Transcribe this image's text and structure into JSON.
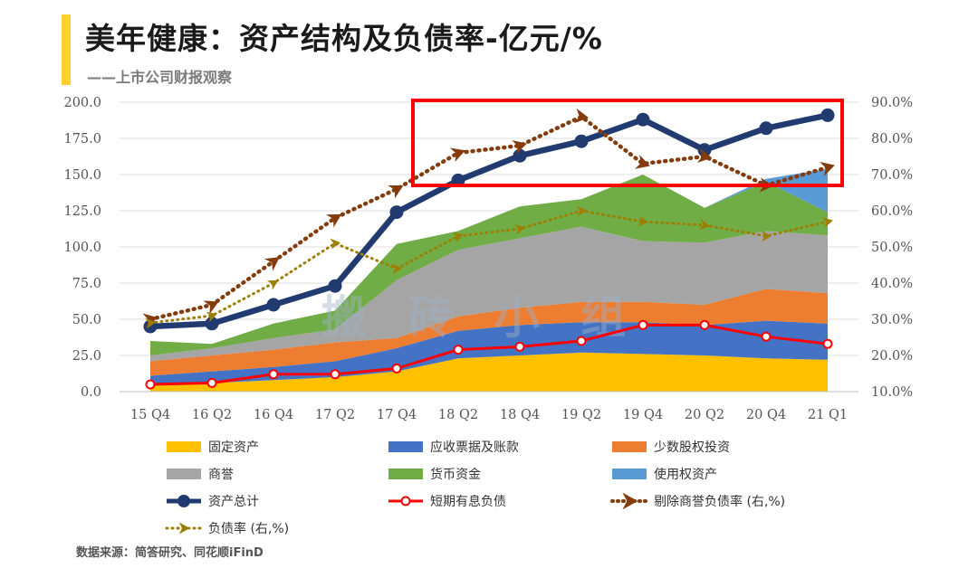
{
  "header": {
    "title": "美年健康：资产结构及负债率-亿元/%",
    "subtitle": "——上市公司财报观察"
  },
  "footer": {
    "source": "数据来源：简答研究、同花顺iFinD"
  },
  "watermark": "搬 砖 小 组",
  "colors": {
    "fixed_assets": "#FFC000",
    "receivables": "#4472C4",
    "minority": "#ED7D31",
    "goodwill": "#A5A5A5",
    "cash": "#70AD47",
    "rou": "#5B9BD5",
    "total_assets": "#213B70",
    "short_debt": "#FF0000",
    "adj_debt_ratio": "#843C0C",
    "debt_ratio": "#9C7F00",
    "highlight_box": "#FF0000",
    "accent": "#FFD232"
  },
  "chart_data": {
    "type": "area",
    "categories": [
      "15 Q4",
      "16 Q2",
      "16 Q4",
      "17 Q2",
      "17 Q4",
      "18 Q2",
      "18 Q4",
      "19 Q2",
      "19 Q4",
      "20 Q2",
      "20 Q4",
      "21 Q1"
    ],
    "ylim": [
      0,
      200
    ],
    "y_ticks": [
      "0.0",
      "25.0",
      "50.0",
      "75.0",
      "100.0",
      "125.0",
      "150.0",
      "175.0",
      "200.0"
    ],
    "y2lim": [
      10,
      90
    ],
    "y2_ticks": [
      "10.0%",
      "20.0%",
      "30.0%",
      "40.0%",
      "50.0%",
      "60.0%",
      "70.0%",
      "80.0%",
      "90.0%"
    ],
    "stacked_series": [
      {
        "key": "fixed_assets",
        "name": "固定资产",
        "values": [
          5,
          6,
          8,
          10,
          14,
          23,
          25,
          27,
          26,
          25,
          23,
          22
        ]
      },
      {
        "key": "receivables",
        "name": "应收票据及账款",
        "values": [
          6,
          8,
          9,
          11,
          16,
          19,
          21,
          21,
          22,
          21,
          26,
          25
        ]
      },
      {
        "key": "minority",
        "name": "少数股权投资",
        "values": [
          10,
          11,
          12,
          13,
          7,
          10,
          12,
          14,
          14,
          14,
          22,
          21
        ]
      },
      {
        "key": "goodwill",
        "name": "商誉",
        "values": [
          4,
          5,
          8,
          9,
          40,
          46,
          48,
          52,
          42,
          43,
          40,
          40
        ]
      },
      {
        "key": "cash",
        "name": "货币资金",
        "values": [
          10,
          3,
          10,
          13,
          25,
          13,
          22,
          19,
          46,
          24,
          34,
          16
        ]
      },
      {
        "key": "rou",
        "name": "使用权资产",
        "values": [
          0,
          0,
          0,
          0,
          0,
          0,
          0,
          0,
          0,
          0,
          2,
          30
        ]
      }
    ],
    "line_series": [
      {
        "key": "total_assets",
        "name": "资产总计",
        "axis": "left",
        "values": [
          45,
          47,
          60,
          73,
          124,
          146,
          163,
          173,
          188,
          167,
          182,
          191
        ]
      },
      {
        "key": "short_debt",
        "name": "短期有息负债",
        "axis": "left",
        "values": [
          5,
          6,
          12,
          12,
          16,
          29,
          31,
          35,
          46,
          46,
          38,
          33
        ]
      },
      {
        "key": "adj_debt_ratio",
        "name": "剔除商誉负债率 (右,%)",
        "axis": "right",
        "values": [
          30,
          34,
          46,
          58,
          66,
          76,
          78,
          86,
          73,
          75,
          67,
          72
        ]
      },
      {
        "key": "debt_ratio",
        "name": "负债率 (右,%)",
        "axis": "right",
        "values": [
          29,
          31,
          40,
          51,
          44,
          53,
          55,
          60,
          57,
          56,
          53,
          57
        ]
      }
    ],
    "legend": [
      {
        "key": "fixed_assets",
        "label": "固定资产",
        "kind": "box"
      },
      {
        "key": "receivables",
        "label": "应收票据及账款",
        "kind": "box"
      },
      {
        "key": "minority",
        "label": "少数股权投资",
        "kind": "box"
      },
      {
        "key": "goodwill",
        "label": "商誉",
        "kind": "box"
      },
      {
        "key": "cash",
        "label": "货币资金",
        "kind": "box"
      },
      {
        "key": "rou",
        "label": "使用权资产",
        "kind": "box"
      },
      {
        "key": "total_assets",
        "label": "资产总计",
        "kind": "line-dot"
      },
      {
        "key": "short_debt",
        "label": "短期有息负债",
        "kind": "line-hollow"
      },
      {
        "key": "adj_debt_ratio",
        "label": "剔除商誉负债率 (右,%)",
        "kind": "dotted-arrow"
      },
      {
        "key": "debt_ratio",
        "label": "负债率 (右,%)",
        "kind": "dotted-arrow"
      }
    ]
  }
}
